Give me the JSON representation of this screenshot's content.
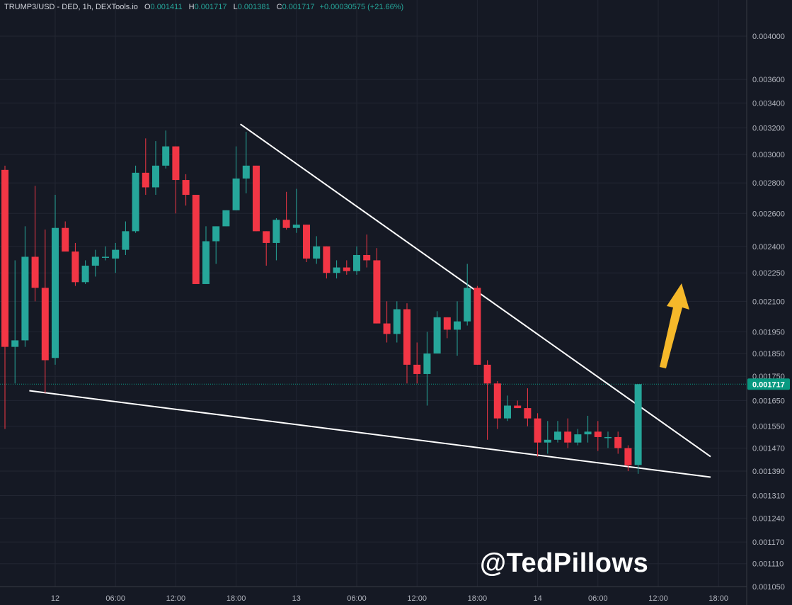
{
  "legend": {
    "symbol": "TRUMP3/USD - DED, 1h, DEXTools.io",
    "open_key": "O",
    "open": "0.001411",
    "high_key": "H",
    "high": "0.001717",
    "low_key": "L",
    "low": "0.001381",
    "close_key": "C",
    "close": "0.001717",
    "change": "+0.00030575 (+21.66%)"
  },
  "watermark": "@TedPillows",
  "colors": {
    "background": "#151924",
    "grid": "#222632",
    "up": "#26a69a",
    "down": "#f23645",
    "trendline": "#ffffff",
    "arrow": "#f5b82a",
    "price_tag": "#089981"
  },
  "chart_data": {
    "type": "candlestick",
    "price_scale": "log",
    "ylim": [
      0.00105,
      0.0045
    ],
    "y_ticks": [
      "0.004000",
      "0.003600",
      "0.003400",
      "0.003200",
      "0.003000",
      "0.002800",
      "0.002600",
      "0.002400",
      "0.002250",
      "0.002100",
      "0.001950",
      "0.001850",
      "0.001750",
      "0.001650",
      "0.001550",
      "0.001470",
      "0.001390",
      "0.001310",
      "0.001240",
      "0.001170",
      "0.001110",
      "0.001050"
    ],
    "x_ticks": [
      {
        "label": "12",
        "bar": 5
      },
      {
        "label": "06:00",
        "bar": 11
      },
      {
        "label": "12:00",
        "bar": 17
      },
      {
        "label": "18:00",
        "bar": 23
      },
      {
        "label": "13",
        "bar": 29
      },
      {
        "label": "06:00",
        "bar": 35
      },
      {
        "label": "12:00",
        "bar": 41
      },
      {
        "label": "18:00",
        "bar": 47
      },
      {
        "label": "14",
        "bar": 53
      },
      {
        "label": "06:00",
        "bar": 59
      },
      {
        "label": "12:00",
        "bar": 65
      },
      {
        "label": "18:00",
        "bar": 71
      }
    ],
    "last_price": "0.001717",
    "candles": [
      {
        "o": 0.00289,
        "h": 0.00292,
        "l": 0.00154,
        "c": 0.00188
      },
      {
        "o": 0.00188,
        "h": 0.00232,
        "l": 0.00172,
        "c": 0.00191
      },
      {
        "o": 0.00191,
        "h": 0.00252,
        "l": 0.00188,
        "c": 0.00234
      },
      {
        "o": 0.00234,
        "h": 0.00278,
        "l": 0.0021,
        "c": 0.00217
      },
      {
        "o": 0.00217,
        "h": 0.0025,
        "l": 0.00168,
        "c": 0.00182
      },
      {
        "o": 0.00183,
        "h": 0.00272,
        "l": 0.0018,
        "c": 0.00251
      },
      {
        "o": 0.00251,
        "h": 0.00255,
        "l": 0.0024,
        "c": 0.00237
      },
      {
        "o": 0.00237,
        "h": 0.00242,
        "l": 0.00218,
        "c": 0.0022
      },
      {
        "o": 0.0022,
        "h": 0.00232,
        "l": 0.00219,
        "c": 0.00229
      },
      {
        "o": 0.00229,
        "h": 0.00238,
        "l": 0.00223,
        "c": 0.00234
      },
      {
        "o": 0.00234,
        "h": 0.0024,
        "l": 0.00232,
        "c": 0.00234
      },
      {
        "o": 0.00233,
        "h": 0.00242,
        "l": 0.00225,
        "c": 0.00238
      },
      {
        "o": 0.00238,
        "h": 0.00255,
        "l": 0.00235,
        "c": 0.00249
      },
      {
        "o": 0.00249,
        "h": 0.00292,
        "l": 0.00248,
        "c": 0.00287
      },
      {
        "o": 0.00287,
        "h": 0.00312,
        "l": 0.00272,
        "c": 0.00277
      },
      {
        "o": 0.00277,
        "h": 0.0031,
        "l": 0.00272,
        "c": 0.00292
      },
      {
        "o": 0.00292,
        "h": 0.00318,
        "l": 0.0029,
        "c": 0.00306
      },
      {
        "o": 0.00306,
        "h": 0.00306,
        "l": 0.0026,
        "c": 0.00282
      },
      {
        "o": 0.00282,
        "h": 0.00286,
        "l": 0.00265,
        "c": 0.00272
      },
      {
        "o": 0.00272,
        "h": 0.00272,
        "l": 0.00219,
        "c": 0.00219
      },
      {
        "o": 0.00219,
        "h": 0.00252,
        "l": 0.00219,
        "c": 0.00243
      },
      {
        "o": 0.00243,
        "h": 0.00252,
        "l": 0.0023,
        "c": 0.00252
      },
      {
        "o": 0.00252,
        "h": 0.00262,
        "l": 0.00252,
        "c": 0.00262
      },
      {
        "o": 0.00262,
        "h": 0.00306,
        "l": 0.00262,
        "c": 0.00283
      },
      {
        "o": 0.00283,
        "h": 0.00317,
        "l": 0.00273,
        "c": 0.00292
      },
      {
        "o": 0.00292,
        "h": 0.00292,
        "l": 0.00249,
        "c": 0.00249
      },
      {
        "o": 0.00249,
        "h": 0.00249,
        "l": 0.00229,
        "c": 0.00242
      },
      {
        "o": 0.00242,
        "h": 0.00257,
        "l": 0.00232,
        "c": 0.00256
      },
      {
        "o": 0.00256,
        "h": 0.00274,
        "l": 0.0025,
        "c": 0.00251
      },
      {
        "o": 0.00251,
        "h": 0.00276,
        "l": 0.00248,
        "c": 0.00253
      },
      {
        "o": 0.00253,
        "h": 0.00253,
        "l": 0.00231,
        "c": 0.00233
      },
      {
        "o": 0.00233,
        "h": 0.00246,
        "l": 0.0023,
        "c": 0.0024
      },
      {
        "o": 0.0024,
        "h": 0.0024,
        "l": 0.00222,
        "c": 0.00225
      },
      {
        "o": 0.00225,
        "h": 0.00232,
        "l": 0.00222,
        "c": 0.00228
      },
      {
        "o": 0.00228,
        "h": 0.00232,
        "l": 0.00224,
        "c": 0.00226
      },
      {
        "o": 0.00226,
        "h": 0.0024,
        "l": 0.00224,
        "c": 0.00235
      },
      {
        "o": 0.00235,
        "h": 0.00247,
        "l": 0.00228,
        "c": 0.00232
      },
      {
        "o": 0.00232,
        "h": 0.00239,
        "l": 0.00199,
        "c": 0.00199
      },
      {
        "o": 0.00199,
        "h": 0.0021,
        "l": 0.0019,
        "c": 0.00194
      },
      {
        "o": 0.00194,
        "h": 0.0021,
        "l": 0.0019,
        "c": 0.00206
      },
      {
        "o": 0.00206,
        "h": 0.00209,
        "l": 0.00172,
        "c": 0.0018
      },
      {
        "o": 0.0018,
        "h": 0.0019,
        "l": 0.00172,
        "c": 0.00176
      },
      {
        "o": 0.00176,
        "h": 0.00195,
        "l": 0.00163,
        "c": 0.00185
      },
      {
        "o": 0.00185,
        "h": 0.00205,
        "l": 0.00185,
        "c": 0.00202
      },
      {
        "o": 0.00202,
        "h": 0.00202,
        "l": 0.00192,
        "c": 0.00196
      },
      {
        "o": 0.00196,
        "h": 0.0021,
        "l": 0.00184,
        "c": 0.002
      },
      {
        "o": 0.002,
        "h": 0.0023,
        "l": 0.00198,
        "c": 0.00217
      },
      {
        "o": 0.00217,
        "h": 0.00218,
        "l": 0.0018,
        "c": 0.0018
      },
      {
        "o": 0.0018,
        "h": 0.00182,
        "l": 0.0015,
        "c": 0.00172
      },
      {
        "o": 0.00172,
        "h": 0.00173,
        "l": 0.00154,
        "c": 0.00158
      },
      {
        "o": 0.00158,
        "h": 0.00167,
        "l": 0.00157,
        "c": 0.00163
      },
      {
        "o": 0.00163,
        "h": 0.00165,
        "l": 0.00162,
        "c": 0.00162
      },
      {
        "o": 0.00162,
        "h": 0.0017,
        "l": 0.00155,
        "c": 0.00158
      },
      {
        "o": 0.00158,
        "h": 0.0016,
        "l": 0.00144,
        "c": 0.00149
      },
      {
        "o": 0.00149,
        "h": 0.00157,
        "l": 0.00145,
        "c": 0.0015
      },
      {
        "o": 0.0015,
        "h": 0.00157,
        "l": 0.00149,
        "c": 0.00153
      },
      {
        "o": 0.00153,
        "h": 0.00158,
        "l": 0.00147,
        "c": 0.00149
      },
      {
        "o": 0.00149,
        "h": 0.00154,
        "l": 0.00148,
        "c": 0.00152
      },
      {
        "o": 0.00152,
        "h": 0.00159,
        "l": 0.00149,
        "c": 0.00153
      },
      {
        "o": 0.00153,
        "h": 0.00157,
        "l": 0.00146,
        "c": 0.00151
      },
      {
        "o": 0.00151,
        "h": 0.00153,
        "l": 0.00147,
        "c": 0.00151
      },
      {
        "o": 0.00151,
        "h": 0.00153,
        "l": 0.00145,
        "c": 0.00147
      },
      {
        "o": 0.00147,
        "h": 0.00148,
        "l": 0.00139,
        "c": 0.00141
      },
      {
        "o": 0.001411,
        "h": 0.001717,
        "l": 0.001381,
        "c": 0.001717
      }
    ],
    "annotations": [
      {
        "type": "trendline",
        "name": "upper-trendline",
        "from": {
          "bar": 23,
          "price": 0.00323
        },
        "to": {
          "bar": 70,
          "price": 0.00144
        }
      },
      {
        "type": "trendline",
        "name": "lower-trendline",
        "from": {
          "bar": 2,
          "price": 0.00169
        },
        "to": {
          "bar": 70,
          "price": 0.00137
        }
      },
      {
        "type": "arrow",
        "name": "breakout-arrow",
        "direction": "up"
      }
    ]
  }
}
